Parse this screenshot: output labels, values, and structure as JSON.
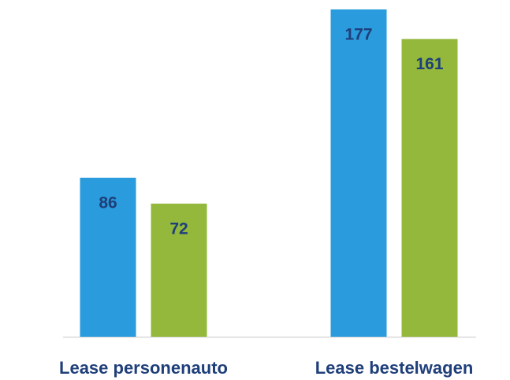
{
  "chart_data": {
    "type": "bar",
    "categories": [
      "Lease personenauto",
      "Lease bestelwagen"
    ],
    "series": [
      {
        "color": "#2a9bdc",
        "values": [
          86,
          177
        ]
      },
      {
        "color": "#93b83b",
        "values": [
          72,
          161
        ]
      }
    ]
  }
}
